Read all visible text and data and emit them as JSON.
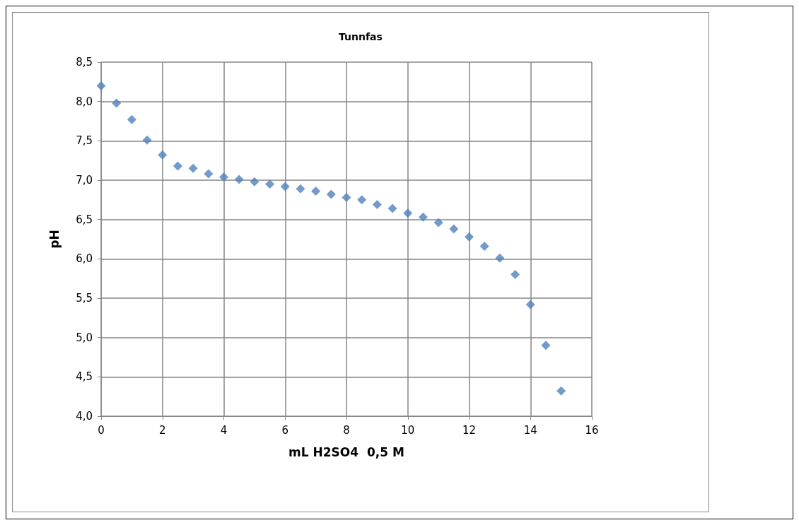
{
  "chart_data": {
    "type": "scatter",
    "title": "Tunnfas",
    "xlabel": "mL H2SO4  0,5 M",
    "ylabel": "pH",
    "x": [
      0,
      0.5,
      1,
      1.5,
      2,
      2.5,
      3,
      3.5,
      4,
      4.5,
      5,
      5.5,
      6,
      6.5,
      7,
      7.5,
      8,
      8.5,
      9,
      9.5,
      10,
      10.5,
      11,
      11.5,
      12,
      12.5,
      13,
      13.5,
      14,
      14.5,
      15
    ],
    "series": [
      {
        "color": "#4f81bd",
        "values": [
          8.2,
          7.98,
          7.77,
          7.51,
          7.32,
          7.18,
          7.15,
          7.08,
          7.04,
          7.01,
          6.98,
          6.95,
          6.92,
          6.89,
          6.86,
          6.82,
          6.78,
          6.75,
          6.69,
          6.64,
          6.58,
          6.53,
          6.46,
          6.38,
          6.28,
          6.16,
          6.01,
          5.8,
          5.42,
          4.9,
          4.32
        ]
      }
    ],
    "xlim": [
      0,
      16
    ],
    "xticks": [
      0,
      2,
      4,
      6,
      8,
      10,
      12,
      14,
      16
    ],
    "ylim": [
      4,
      8.5
    ],
    "yticks": [
      {
        "value": 4,
        "label": "4,0"
      },
      {
        "value": 4.5,
        "label": "4,5"
      },
      {
        "value": 5,
        "label": "5,0"
      },
      {
        "value": 5.5,
        "label": "5,5"
      },
      {
        "value": 6,
        "label": "6,0"
      },
      {
        "value": 6.5,
        "label": "6,5"
      },
      {
        "value": 7,
        "label": "7,0"
      },
      {
        "value": 7.5,
        "label": "7,5"
      },
      {
        "value": 8,
        "label": "8,0"
      },
      {
        "value": 8.5,
        "label": "8,5"
      }
    ],
    "grid": true,
    "marker": "diamond"
  }
}
